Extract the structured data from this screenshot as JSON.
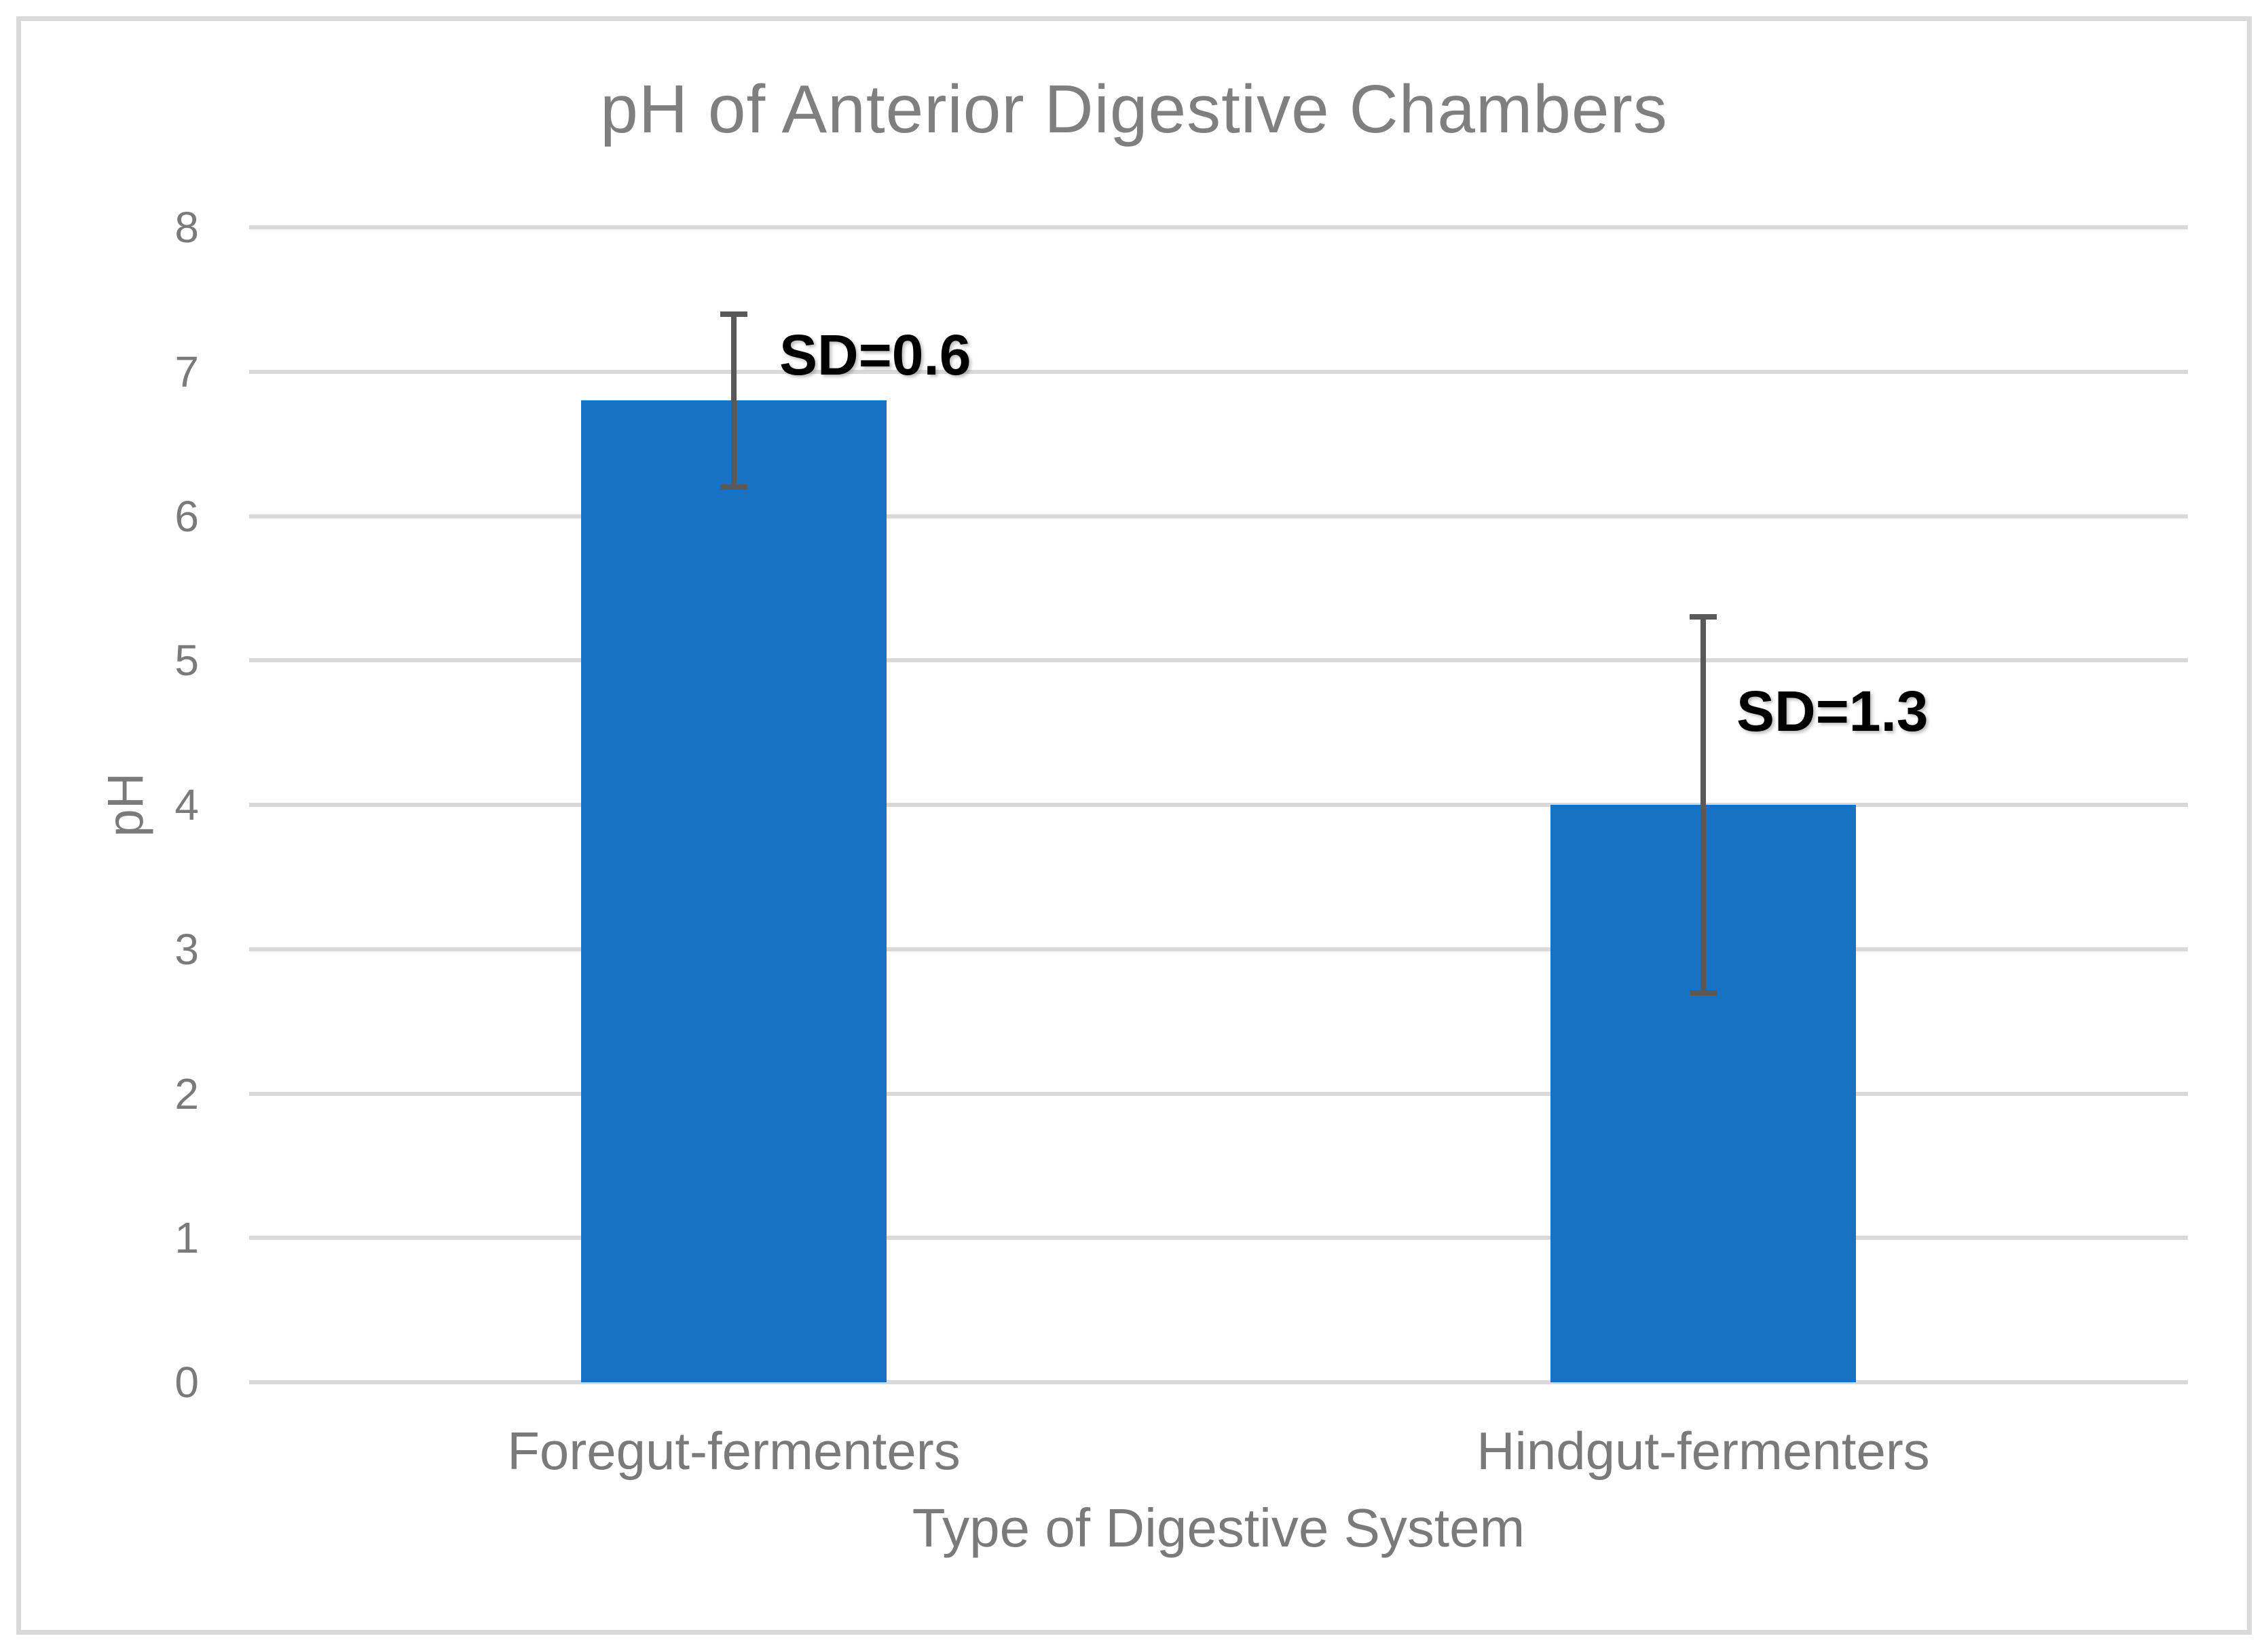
{
  "chart_data": {
    "type": "bar",
    "title": "pH of Anterior Digestive Chambers",
    "xlabel": "Type of Digestive System",
    "ylabel": "pH",
    "categories": [
      "Foregut-fermenters",
      "Hindgut-fermenters"
    ],
    "values": [
      6.8,
      4.0
    ],
    "error_sd": [
      0.6,
      1.3
    ],
    "error_ranges": [
      [
        6.2,
        7.4
      ],
      [
        2.7,
        5.3
      ]
    ],
    "annotations": [
      "SD=0.6",
      "SD=1.3"
    ],
    "ylim": [
      0,
      8
    ],
    "yticks": [
      0,
      1,
      2,
      3,
      4,
      5,
      6,
      7,
      8
    ],
    "grid": true,
    "legend": false,
    "colors": {
      "bar": "#1772C5",
      "error_bar": "#595959",
      "gridline": "#D9D9D9",
      "frame_border": "#D9D9D9",
      "axis_text": "#7A7A7A",
      "title_text": "#7F7F7F",
      "annotation_text": "#000000",
      "background": "#FFFFFF"
    }
  }
}
